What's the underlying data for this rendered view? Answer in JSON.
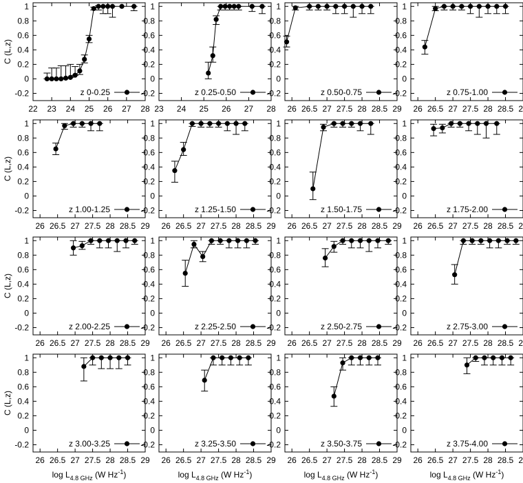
{
  "ylabel": "C (L,z)",
  "xlabel": {
    "prefix": "log L",
    "subscript": "4.8 GHz",
    "unit": " (W Hz",
    "exp": "-1",
    "close": ")"
  },
  "chart_data": [
    {
      "type": "line",
      "legend": "z 0-0.25",
      "legend_position": "bottom-right",
      "xlim": [
        22,
        28
      ],
      "ylim": [
        -0.3,
        1.05
      ],
      "xticks": [
        22,
        23,
        24,
        25,
        26,
        27,
        28
      ],
      "yticks": [
        -0.2,
        0,
        0.2,
        0.4,
        0.6,
        0.8,
        1
      ],
      "x": [
        22.75,
        23.0,
        23.25,
        23.5,
        23.75,
        24.0,
        24.25,
        24.5,
        24.75,
        25.0,
        25.25,
        25.5,
        25.75,
        26.0,
        26.25,
        26.75,
        27.4
      ],
      "y": [
        0,
        0,
        0,
        0,
        0.01,
        0.02,
        0.05,
        0.11,
        0.27,
        0.55,
        0.97,
        1,
        1,
        1,
        1,
        1,
        1
      ],
      "yerr_low": [
        0,
        0,
        0,
        0,
        0,
        0,
        0,
        0.05,
        0.05,
        0.05,
        0.02,
        0.05,
        0.1,
        0.1,
        0.15,
        0,
        0.06
      ],
      "yerr_high": [
        0.08,
        0.15,
        0.15,
        0.18,
        0.17,
        0.18,
        0.12,
        0.09,
        0.06,
        0.05,
        0.02,
        0.01,
        0,
        0,
        0,
        0,
        0
      ],
      "show_ylabel": true,
      "show_xlabel": false
    },
    {
      "type": "line",
      "legend": "z 0.25-0.50",
      "legend_position": "bottom-right",
      "xlim": [
        23,
        28
      ],
      "ylim": [
        -0.3,
        1.05
      ],
      "xticks": [
        23,
        24,
        25,
        26,
        27,
        28
      ],
      "yticks": [
        -0.2,
        0,
        0.2,
        0.4,
        0.6,
        0.8,
        1
      ],
      "x": [
        25.2,
        25.4,
        25.55,
        25.75,
        25.95,
        26.15,
        26.35,
        26.55,
        27.15,
        27.6
      ],
      "y": [
        0.08,
        0.32,
        0.82,
        1,
        1,
        1,
        1,
        1,
        1,
        1
      ],
      "yerr_low": [
        0.08,
        0.09,
        0.07,
        0.05,
        0.05,
        0.05,
        0.05,
        0.05,
        0.07,
        0.1
      ],
      "yerr_high": [
        0.15,
        0.12,
        0.05,
        0,
        0,
        0,
        0,
        0,
        0,
        0
      ],
      "show_ylabel": false,
      "show_xlabel": false
    },
    {
      "type": "line",
      "legend": "z 0.50-0.75",
      "legend_position": "bottom-right",
      "xlim": [
        25.8,
        29
      ],
      "ylim": [
        -0.3,
        1.05
      ],
      "xticks": [
        26,
        26.5,
        27,
        27.5,
        28,
        28.5,
        29
      ],
      "yticks": [
        -0.2,
        0,
        0.2,
        0.4,
        0.6,
        0.8,
        1
      ],
      "x": [
        25.85,
        26.1,
        26.5,
        26.75,
        27.0,
        27.25,
        27.5,
        27.75,
        28.0,
        28.25
      ],
      "y": [
        0.51,
        0.98,
        1,
        1,
        1,
        1,
        1,
        1,
        1,
        1
      ],
      "yerr_low": [
        0.07,
        0.03,
        0.05,
        0.05,
        0.05,
        0.1,
        0.1,
        0.15,
        0.1,
        0.1
      ],
      "yerr_high": [
        0.08,
        0.02,
        0,
        0,
        0,
        0,
        0,
        0,
        0,
        0
      ],
      "show_ylabel": false,
      "show_xlabel": false
    },
    {
      "type": "line",
      "legend": "z 0.75-1.00",
      "legend_position": "bottom-right",
      "xlim": [
        25.8,
        29
      ],
      "ylim": [
        -0.3,
        1.05
      ],
      "xticks": [
        26,
        26.5,
        27,
        27.5,
        28,
        28.5,
        29
      ],
      "yticks": [
        -0.2,
        0,
        0.2,
        0.4,
        0.6,
        0.8,
        1
      ],
      "x": [
        26.2,
        26.5,
        26.75,
        27.0,
        27.25,
        27.5,
        27.75,
        28.0,
        28.25,
        28.5
      ],
      "y": [
        0.44,
        0.97,
        1,
        1,
        1,
        1,
        1,
        1,
        1,
        1
      ],
      "yerr_low": [
        0.1,
        0.03,
        0.05,
        0.05,
        0.05,
        0.1,
        0.15,
        0.1,
        0.1,
        0.1
      ],
      "yerr_high": [
        0.09,
        0.03,
        0,
        0,
        0,
        0,
        0,
        0,
        0,
        0
      ],
      "show_ylabel": false,
      "show_xlabel": false
    },
    {
      "type": "line",
      "legend": "z 1.00-1.25",
      "legend_position": "bottom-right",
      "xlim": [
        25.8,
        29
      ],
      "ylim": [
        -0.3,
        1.05
      ],
      "xticks": [
        26,
        26.5,
        27,
        27.5,
        28,
        28.5,
        29
      ],
      "yticks": [
        -0.2,
        0,
        0.2,
        0.4,
        0.6,
        0.8,
        1
      ],
      "x": [
        26.45,
        26.7,
        26.95,
        27.2,
        27.45,
        27.7
      ],
      "y": [
        0.65,
        0.97,
        1,
        1,
        1,
        1
      ],
      "yerr_low": [
        0.08,
        0.05,
        0.05,
        0.05,
        0.1,
        0.1
      ],
      "yerr_high": [
        0.08,
        0.03,
        0,
        0,
        0,
        0
      ],
      "show_ylabel": true,
      "show_xlabel": false
    },
    {
      "type": "line",
      "legend": "z 1.25-1.50",
      "legend_position": "bottom-right",
      "xlim": [
        25.8,
        29
      ],
      "ylim": [
        -0.3,
        1.05
      ],
      "xticks": [
        26,
        26.5,
        27,
        27.5,
        28,
        28.5,
        29
      ],
      "yticks": [
        -0.2,
        0,
        0.2,
        0.4,
        0.6,
        0.8,
        1
      ],
      "x": [
        26.25,
        26.5,
        26.75,
        27.0,
        27.25,
        27.5,
        27.75,
        28.0,
        28.25
      ],
      "y": [
        0.35,
        0.64,
        1,
        1,
        1,
        1,
        1,
        1,
        1
      ],
      "yerr_low": [
        0.16,
        0.08,
        0.04,
        0.05,
        0.05,
        0.05,
        0.1,
        0.15,
        0.1
      ],
      "yerr_high": [
        0.13,
        0.1,
        0,
        0,
        0,
        0,
        0,
        0,
        0
      ],
      "show_ylabel": false,
      "show_xlabel": false
    },
    {
      "type": "line",
      "legend": "z 1.50-1.75",
      "legend_position": "bottom-right",
      "xlim": [
        25.8,
        29
      ],
      "ylim": [
        -0.3,
        1.05
      ],
      "xticks": [
        26,
        26.5,
        27,
        27.5,
        28,
        28.5,
        29
      ],
      "yticks": [
        -0.2,
        0,
        0.2,
        0.4,
        0.6,
        0.8,
        1
      ],
      "x": [
        26.6,
        26.9,
        27.2,
        27.45,
        27.7,
        27.95,
        28.25
      ],
      "y": [
        0.1,
        0.95,
        1,
        1,
        1,
        1,
        1
      ],
      "yerr_low": [
        0.15,
        0.05,
        0.05,
        0.05,
        0.05,
        0.1,
        0.15
      ],
      "yerr_high": [
        0.23,
        0.04,
        0,
        0,
        0,
        0,
        0
      ],
      "show_ylabel": false,
      "show_xlabel": false
    },
    {
      "type": "line",
      "legend": "z 1.75-2.00",
      "legend_position": "bottom-right",
      "xlim": [
        25.8,
        29
      ],
      "ylim": [
        -0.3,
        1.05
      ],
      "xticks": [
        26,
        26.5,
        27,
        27.5,
        28,
        28.5,
        29
      ],
      "yticks": [
        -0.2,
        0,
        0.2,
        0.4,
        0.6,
        0.8,
        1
      ],
      "x": [
        26.45,
        26.7,
        26.95,
        27.2,
        27.45,
        27.7,
        27.95,
        28.25
      ],
      "y": [
        0.93,
        0.94,
        1,
        1,
        1,
        1,
        1,
        1
      ],
      "yerr_low": [
        0.1,
        0.07,
        0.05,
        0.05,
        0.1,
        0.15,
        0.2,
        0.15
      ],
      "yerr_high": [
        0.06,
        0.05,
        0,
        0,
        0,
        0,
        0,
        0
      ],
      "show_ylabel": false,
      "show_xlabel": false
    },
    {
      "type": "line",
      "legend": "z 2.00-2.25",
      "legend_position": "bottom-right",
      "xlim": [
        25.8,
        29
      ],
      "ylim": [
        -0.3,
        1.05
      ],
      "xticks": [
        26,
        26.5,
        27,
        27.5,
        28,
        28.5,
        29
      ],
      "yticks": [
        -0.2,
        0,
        0.2,
        0.4,
        0.6,
        0.8,
        1
      ],
      "x": [
        26.95,
        27.2,
        27.45,
        27.7,
        27.95,
        28.2,
        28.45,
        28.7
      ],
      "y": [
        0.9,
        0.93,
        1,
        1,
        1,
        1,
        1,
        1
      ],
      "yerr_low": [
        0.1,
        0.05,
        0.05,
        0.1,
        0.1,
        0.15,
        0.1,
        0.05
      ],
      "yerr_high": [
        0.1,
        0.06,
        0,
        0,
        0,
        0,
        0,
        0
      ],
      "show_ylabel": true,
      "show_xlabel": false
    },
    {
      "type": "line",
      "legend": "z 2.25-2.50",
      "legend_position": "bottom-right",
      "xlim": [
        25.8,
        29
      ],
      "ylim": [
        -0.3,
        1.05
      ],
      "xticks": [
        26,
        26.5,
        27,
        27.5,
        28,
        28.5,
        29
      ],
      "yticks": [
        -0.2,
        0,
        0.2,
        0.4,
        0.6,
        0.8,
        1
      ],
      "x": [
        26.55,
        26.8,
        27.05,
        27.3,
        27.55,
        27.8,
        28.05,
        28.3,
        28.55
      ],
      "y": [
        0.55,
        0.95,
        0.78,
        1,
        1,
        1,
        1,
        1,
        1
      ],
      "yerr_low": [
        0.18,
        0.05,
        0.07,
        0.05,
        0.05,
        0.1,
        0.1,
        0.1,
        0.05
      ],
      "yerr_high": [
        0.18,
        0.05,
        0.07,
        0,
        0,
        0,
        0,
        0,
        0
      ],
      "show_ylabel": false,
      "show_xlabel": false
    },
    {
      "type": "line",
      "legend": "z 2.50-2.75",
      "legend_position": "bottom-right",
      "xlim": [
        25.8,
        29
      ],
      "ylim": [
        -0.3,
        1.05
      ],
      "xticks": [
        26,
        26.5,
        27,
        27.5,
        28,
        28.5,
        29
      ],
      "yticks": [
        -0.2,
        0,
        0.2,
        0.4,
        0.6,
        0.8,
        1
      ],
      "x": [
        26.95,
        27.2,
        27.45,
        27.7,
        27.95,
        28.2,
        28.45,
        28.75
      ],
      "y": [
        0.76,
        0.92,
        1,
        1,
        1,
        1,
        1,
        1
      ],
      "yerr_low": [
        0.12,
        0.08,
        0.05,
        0.1,
        0.1,
        0.15,
        0.1,
        0.05
      ],
      "yerr_high": [
        0.13,
        0.07,
        0,
        0,
        0,
        0,
        0,
        0
      ],
      "show_ylabel": false,
      "show_xlabel": false
    },
    {
      "type": "line",
      "legend": "z 2.75-3.00",
      "legend_position": "bottom-right",
      "xlim": [
        25.8,
        29
      ],
      "ylim": [
        -0.3,
        1.05
      ],
      "xticks": [
        26,
        26.5,
        27,
        27.5,
        28,
        28.5,
        29
      ],
      "yticks": [
        -0.2,
        0,
        0.2,
        0.4,
        0.6,
        0.8,
        1
      ],
      "x": [
        27.05,
        27.3,
        27.55,
        27.8,
        28.05,
        28.3,
        28.55,
        28.8
      ],
      "y": [
        0.53,
        1,
        1,
        1,
        1,
        1,
        1,
        1
      ],
      "yerr_low": [
        0.13,
        0.05,
        0.05,
        0.05,
        0.1,
        0.1,
        0.05,
        0.05
      ],
      "yerr_high": [
        0.14,
        0,
        0,
        0,
        0,
        0,
        0,
        0
      ],
      "show_ylabel": false,
      "show_xlabel": false
    },
    {
      "type": "line",
      "legend": "z 3.00-3.25",
      "legend_position": "bottom-right",
      "xlim": [
        25.8,
        29
      ],
      "ylim": [
        -0.3,
        1.05
      ],
      "xticks": [
        26,
        26.5,
        27,
        27.5,
        28,
        28.5,
        29
      ],
      "yticks": [
        -0.2,
        0,
        0.2,
        0.4,
        0.6,
        0.8,
        1
      ],
      "x": [
        27.25,
        27.5,
        27.75,
        28.0,
        28.25,
        28.5
      ],
      "y": [
        0.88,
        1,
        1,
        1,
        1,
        1
      ],
      "yerr_low": [
        0.2,
        0.1,
        0.15,
        0.15,
        0.15,
        0.1
      ],
      "yerr_high": [
        0.12,
        0,
        0,
        0,
        0,
        0
      ],
      "show_ylabel": true,
      "show_xlabel": true
    },
    {
      "type": "line",
      "legend": "z 3.25-3.50",
      "legend_position": "bottom-right",
      "xlim": [
        25.8,
        29
      ],
      "ylim": [
        -0.3,
        1.05
      ],
      "xticks": [
        26,
        26.5,
        27,
        27.5,
        28,
        28.5,
        29
      ],
      "yticks": [
        -0.2,
        0,
        0.2,
        0.4,
        0.6,
        0.8,
        1
      ],
      "x": [
        27.1,
        27.35,
        27.6,
        27.85,
        28.1,
        28.35
      ],
      "y": [
        0.69,
        1,
        1,
        1,
        1,
        1
      ],
      "yerr_low": [
        0.15,
        0.1,
        0.1,
        0.1,
        0.1,
        0.1
      ],
      "yerr_high": [
        0.14,
        0,
        0,
        0,
        0,
        0
      ],
      "show_ylabel": false,
      "show_xlabel": true
    },
    {
      "type": "line",
      "legend": "z 3.50-3.75",
      "legend_position": "bottom-right",
      "xlim": [
        25.8,
        29
      ],
      "ylim": [
        -0.3,
        1.05
      ],
      "xticks": [
        26,
        26.5,
        27,
        27.5,
        28,
        28.5,
        29
      ],
      "yticks": [
        -0.2,
        0,
        0.2,
        0.4,
        0.6,
        0.8,
        1
      ],
      "x": [
        27.2,
        27.45,
        27.7,
        27.95,
        28.2,
        28.45
      ],
      "y": [
        0.47,
        0.93,
        1,
        1,
        1,
        1
      ],
      "yerr_low": [
        0.14,
        0.1,
        0.1,
        0.1,
        0.1,
        0.1
      ],
      "yerr_high": [
        0.13,
        0.07,
        0,
        0,
        0,
        0
      ],
      "show_ylabel": false,
      "show_xlabel": true
    },
    {
      "type": "line",
      "legend": "z 3.75-4.00",
      "legend_position": "bottom-right",
      "xlim": [
        25.8,
        29
      ],
      "ylim": [
        -0.3,
        1.05
      ],
      "xticks": [
        26,
        26.5,
        27,
        27.5,
        28,
        28.5,
        29
      ],
      "yticks": [
        -0.2,
        0,
        0.2,
        0.4,
        0.6,
        0.8,
        1
      ],
      "x": [
        27.4,
        27.65,
        27.9,
        28.15,
        28.4,
        28.65
      ],
      "y": [
        0.9,
        1,
        1,
        1,
        1,
        1
      ],
      "yerr_low": [
        0.12,
        0.05,
        0.1,
        0.1,
        0.1,
        0.1
      ],
      "yerr_high": [
        0.1,
        0,
        0,
        0,
        0,
        0
      ],
      "show_ylabel": false,
      "show_xlabel": true
    }
  ]
}
